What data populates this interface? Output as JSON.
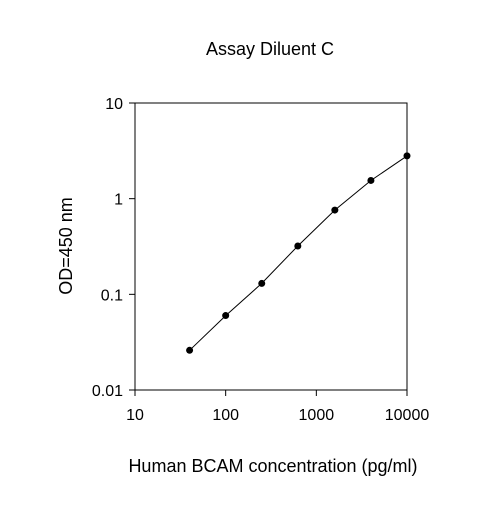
{
  "chart_data": {
    "type": "scatter",
    "title": "Assay Diluent C",
    "xlabel": "Human BCAM concentration (pg/ml)",
    "ylabel": "OD=450 nm",
    "x_scale": "log",
    "y_scale": "log",
    "xlim": [
      10,
      10000
    ],
    "ylim": [
      0.01,
      10
    ],
    "x_ticks": [
      10,
      100,
      1000,
      10000
    ],
    "x_tick_labels": [
      "10",
      "100",
      "1000",
      "10000"
    ],
    "y_ticks": [
      0.01,
      0.1,
      1,
      10
    ],
    "y_tick_labels": [
      "0.01",
      "0.1",
      "1",
      "10"
    ],
    "grid": false,
    "legend": false,
    "points_connected_by_line": true,
    "series": [
      {
        "x": [
          40,
          100,
          250,
          625,
          1600,
          4000,
          10000
        ],
        "y": [
          0.026,
          0.06,
          0.13,
          0.32,
          0.76,
          1.55,
          2.8
        ]
      }
    ],
    "colors": {
      "line": "#000000",
      "marker": "#000000",
      "axis": "#000000"
    }
  }
}
